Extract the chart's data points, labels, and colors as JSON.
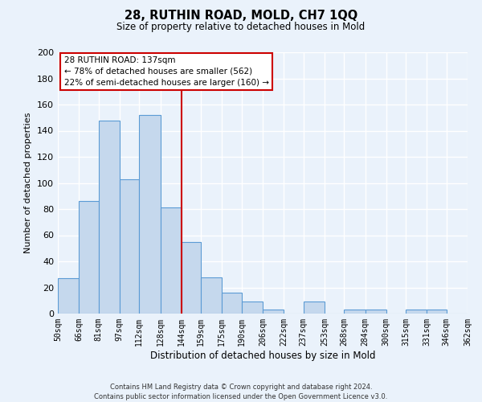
{
  "title": "28, RUTHIN ROAD, MOLD, CH7 1QQ",
  "subtitle": "Size of property relative to detached houses in Mold",
  "xlabel": "Distribution of detached houses by size in Mold",
  "ylabel": "Number of detached properties",
  "bin_labels": [
    "50sqm",
    "66sqm",
    "81sqm",
    "97sqm",
    "112sqm",
    "128sqm",
    "144sqm",
    "159sqm",
    "175sqm",
    "190sqm",
    "206sqm",
    "222sqm",
    "237sqm",
    "253sqm",
    "268sqm",
    "284sqm",
    "300sqm",
    "315sqm",
    "331sqm",
    "346sqm",
    "362sqm"
  ],
  "bar_values": [
    27,
    86,
    148,
    103,
    152,
    81,
    55,
    28,
    16,
    9,
    3,
    0,
    9,
    0,
    3,
    3,
    0,
    3,
    3,
    0
  ],
  "bin_edges": [
    50,
    66,
    81,
    97,
    112,
    128,
    144,
    159,
    175,
    190,
    206,
    222,
    237,
    253,
    268,
    284,
    300,
    315,
    331,
    346,
    362
  ],
  "bar_color": "#c5d8ed",
  "bar_edge_color": "#5b9bd5",
  "vline_x": 144,
  "vline_color": "#cc0000",
  "ylim": [
    0,
    200
  ],
  "yticks": [
    0,
    20,
    40,
    60,
    80,
    100,
    120,
    140,
    160,
    180,
    200
  ],
  "annotation_title": "28 RUTHIN ROAD: 137sqm",
  "annotation_line1": "← 78% of detached houses are smaller (562)",
  "annotation_line2": "22% of semi-detached houses are larger (160) →",
  "annotation_box_color": "#ffffff",
  "annotation_box_edge": "#cc0000",
  "footer_line1": "Contains HM Land Registry data © Crown copyright and database right 2024.",
  "footer_line2": "Contains public sector information licensed under the Open Government Licence v3.0.",
  "background_color": "#eaf2fb",
  "plot_bg_color": "#eaf2fb",
  "grid_color": "#ffffff"
}
